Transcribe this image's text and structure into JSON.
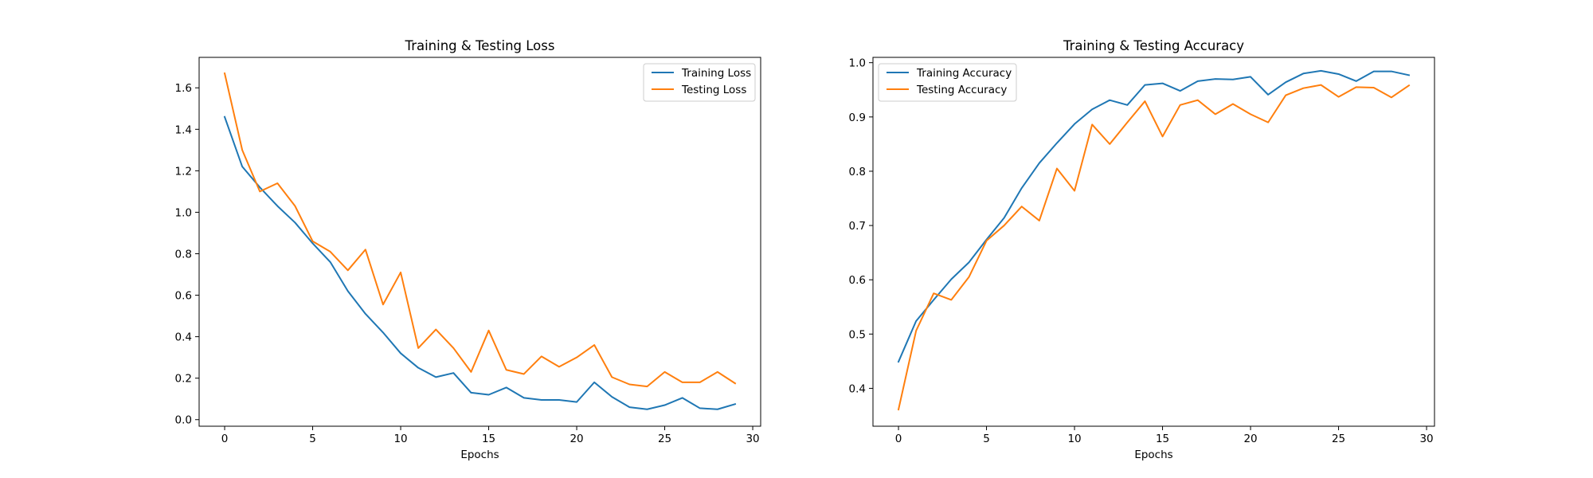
{
  "chart_data": [
    {
      "type": "line",
      "title": "Training & Testing Loss",
      "xlabel": "Epochs",
      "ylabel": "",
      "xlim": [
        -1.45,
        30.45
      ],
      "ylim": [
        -0.0317,
        1.7469
      ],
      "xticks": [
        0,
        5,
        10,
        15,
        20,
        25,
        30
      ],
      "xtick_labels": [
        "0",
        "5",
        "10",
        "15",
        "20",
        "25",
        "30"
      ],
      "yticks": [
        0.0,
        0.2,
        0.4,
        0.6,
        0.8,
        1.0,
        1.2,
        1.4,
        1.6
      ],
      "ytick_labels": [
        "0.0",
        "0.2",
        "0.4",
        "0.6",
        "0.8",
        "1.0",
        "1.2",
        "1.4",
        "1.6"
      ],
      "grid": false,
      "legend": "top-right",
      "x": [
        0,
        1,
        2,
        3,
        4,
        5,
        6,
        7,
        8,
        9,
        10,
        11,
        12,
        13,
        14,
        15,
        16,
        17,
        18,
        19,
        20,
        21,
        22,
        23,
        24,
        25,
        26,
        27,
        28,
        29
      ],
      "series": [
        {
          "name": "Training Loss",
          "color": "#1f77b4",
          "values": [
            1.46,
            1.22,
            1.12,
            1.03,
            0.95,
            0.85,
            0.76,
            0.62,
            0.51,
            0.42,
            0.32,
            0.25,
            0.205,
            0.225,
            0.13,
            0.12,
            0.155,
            0.105,
            0.095,
            0.095,
            0.085,
            0.18,
            0.11,
            0.06,
            0.05,
            0.07,
            0.105,
            0.055,
            0.05,
            0.075
          ]
        },
        {
          "name": "Testing Loss",
          "color": "#ff7f0e",
          "values": [
            1.67,
            1.3,
            1.1,
            1.14,
            1.03,
            0.86,
            0.81,
            0.72,
            0.82,
            0.555,
            0.71,
            0.345,
            0.435,
            0.345,
            0.23,
            0.43,
            0.24,
            0.22,
            0.305,
            0.255,
            0.3,
            0.36,
            0.205,
            0.17,
            0.16,
            0.23,
            0.18,
            0.18,
            0.23,
            0.175
          ]
        }
      ]
    },
    {
      "type": "line",
      "title": "Training & Testing Accuracy",
      "xlabel": "Epochs",
      "ylabel": "",
      "xlim": [
        -1.45,
        30.45
      ],
      "ylim": [
        0.3302,
        1.0098
      ],
      "xticks": [
        0,
        5,
        10,
        15,
        20,
        25,
        30
      ],
      "xtick_labels": [
        "0",
        "5",
        "10",
        "15",
        "20",
        "25",
        "30"
      ],
      "yticks": [
        0.4,
        0.5,
        0.6,
        0.7,
        0.8,
        0.9,
        1.0
      ],
      "ytick_labels": [
        "0.4",
        "0.5",
        "0.6",
        "0.7",
        "0.8",
        "0.9",
        "1.0"
      ],
      "grid": false,
      "legend": "top-left",
      "x": [
        0,
        1,
        2,
        3,
        4,
        5,
        6,
        7,
        8,
        9,
        10,
        11,
        12,
        13,
        14,
        15,
        16,
        17,
        18,
        19,
        20,
        21,
        22,
        23,
        24,
        25,
        26,
        27,
        28,
        29
      ],
      "series": [
        {
          "name": "Training Accuracy",
          "color": "#1f77b4",
          "values": [
            0.449,
            0.524,
            0.563,
            0.601,
            0.632,
            0.674,
            0.714,
            0.769,
            0.815,
            0.852,
            0.887,
            0.914,
            0.931,
            0.922,
            0.959,
            0.962,
            0.948,
            0.966,
            0.97,
            0.969,
            0.974,
            0.941,
            0.964,
            0.98,
            0.985,
            0.979,
            0.966,
            0.984,
            0.984,
            0.977
          ]
        },
        {
          "name": "Testing Accuracy",
          "color": "#ff7f0e",
          "values": [
            0.361,
            0.506,
            0.575,
            0.563,
            0.605,
            0.672,
            0.7,
            0.735,
            0.709,
            0.805,
            0.764,
            0.886,
            0.85,
            0.89,
            0.929,
            0.864,
            0.922,
            0.931,
            0.905,
            0.924,
            0.905,
            0.89,
            0.94,
            0.953,
            0.959,
            0.937,
            0.955,
            0.954,
            0.936,
            0.958
          ]
        }
      ]
    }
  ]
}
